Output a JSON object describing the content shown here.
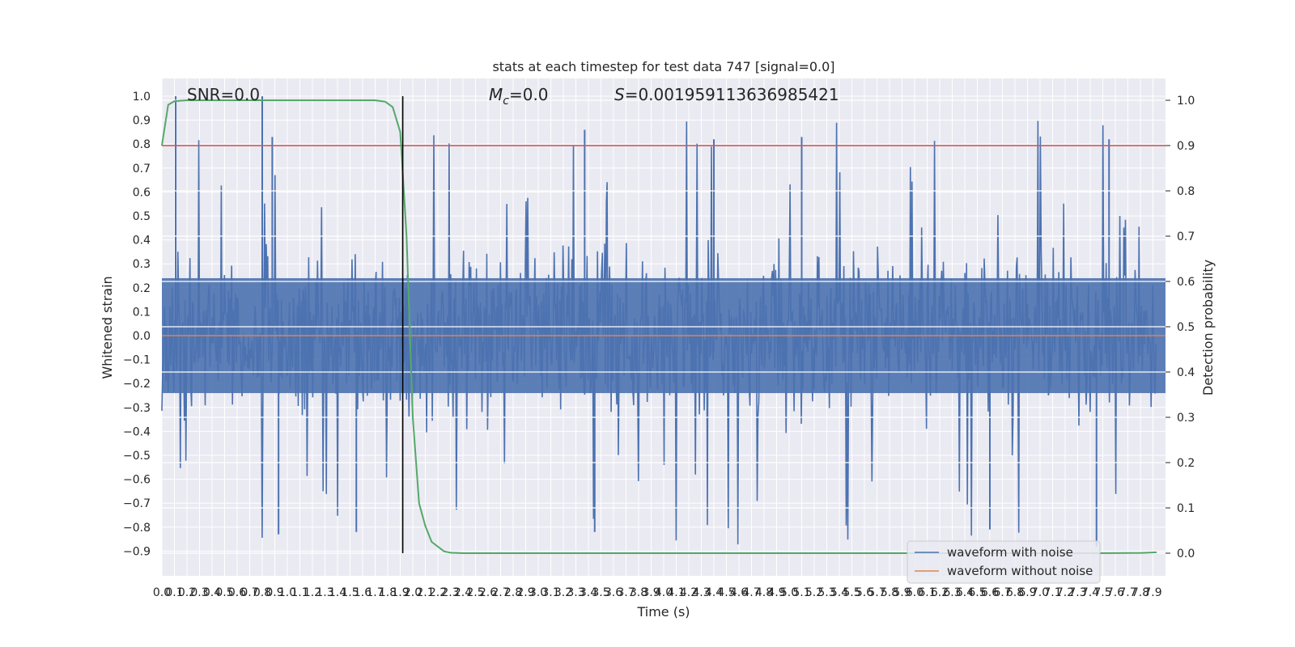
{
  "chart_data": {
    "type": "line",
    "title": "stats at each timestep for test data 747 [signal=0.0]",
    "xlabel": "Time (s)",
    "ylabel_left": "Whitened strain",
    "ylabel_right": "Detection probability",
    "xlim": [
      0.0,
      8.0
    ],
    "ylim_left": [
      -1.0,
      1.0
    ],
    "ylim_right": [
      0.0,
      1.0
    ],
    "grid": true,
    "legend_position": "lower-right",
    "x_tick_labels": [
      "0.0",
      "0.1",
      "0.2",
      "0.3",
      "0.4",
      "0.5",
      "0.6",
      "0.7",
      "0.8",
      "0.9",
      "1.0",
      "1.1",
      "1.2",
      "1.3",
      "1.4",
      "1.5",
      "1.6",
      "1.7",
      "1.8",
      "1.9",
      "2.0",
      "2.1",
      "2.2",
      "2.3",
      "2.4",
      "2.5",
      "2.6",
      "2.7",
      "2.8",
      "2.9",
      "3.0",
      "3.1",
      "3.2",
      "3.3",
      "3.4",
      "3.5",
      "3.6",
      "3.7",
      "3.8",
      "3.9",
      "4.0",
      "4.1",
      "4.2",
      "4.3",
      "4.4",
      "4.5",
      "4.6",
      "4.7",
      "4.8",
      "4.9",
      "5.0",
      "5.1",
      "5.2",
      "5.3",
      "5.4",
      "5.5",
      "5.6",
      "5.7",
      "5.8",
      "5.9",
      "6.0",
      "6.1",
      "6.2",
      "6.3",
      "6.4",
      "6.5",
      "6.6",
      "6.7",
      "6.8",
      "6.9",
      "7.0",
      "7.1",
      "7.2",
      "7.3",
      "7.4",
      "7.5",
      "7.6",
      "7.7",
      "7.8",
      "7.9"
    ],
    "y_left_tick_labels": [
      "−0.9",
      "−0.8",
      "−0.7",
      "−0.6",
      "−0.5",
      "−0.4",
      "−0.3",
      "−0.2",
      "−0.1",
      "0.0",
      "0.1",
      "0.2",
      "0.3",
      "0.4",
      "0.5",
      "0.6",
      "0.7",
      "0.8",
      "0.9",
      "1.0"
    ],
    "y_right_tick_labels": [
      "0.0",
      "0.1",
      "0.2",
      "0.3",
      "0.4",
      "0.5",
      "0.6",
      "0.7",
      "0.8",
      "0.9",
      "1.0"
    ],
    "annotations": {
      "snr": "SNR=0.0",
      "mc_symbol": "M",
      "mc_subscript": "c",
      "mc_value": "=0.0",
      "s_symbol": "S",
      "s_value": "=0.001959113636985421"
    },
    "threshold_line": {
      "axis": "right",
      "value": 0.9,
      "color": "#c44e52"
    },
    "marker_line": {
      "x": 1.92,
      "color": "#000000"
    },
    "series": [
      {
        "name": "waveform with noise",
        "axis": "left",
        "color": "#4c72b0",
        "envelope": "dense noise, peaks up to 1.0, troughs down to -0.9"
      },
      {
        "name": "waveform without noise",
        "axis": "left",
        "color": "#dd8452",
        "y": 0.0
      },
      {
        "axis": "right",
        "color": "#55a868",
        "x": [
          0.0,
          0.05,
          0.1,
          0.2,
          0.5,
          1.0,
          1.5,
          1.7,
          1.78,
          1.84,
          1.9,
          1.95,
          2.0,
          2.05,
          2.1,
          2.15,
          2.25,
          2.3,
          2.4,
          3.0,
          4.0,
          5.0,
          6.0,
          7.0,
          7.5,
          7.8,
          7.93
        ],
        "y": [
          0.9,
          0.99,
          0.998,
          1.0,
          1.0,
          1.0,
          1.0,
          1.0,
          0.997,
          0.985,
          0.93,
          0.7,
          0.3,
          0.11,
          0.06,
          0.025,
          0.004,
          0.001,
          0.0,
          0.0,
          0.0,
          0.0,
          0.0,
          0.0,
          0.0,
          0.0005,
          0.002
        ]
      }
    ]
  }
}
